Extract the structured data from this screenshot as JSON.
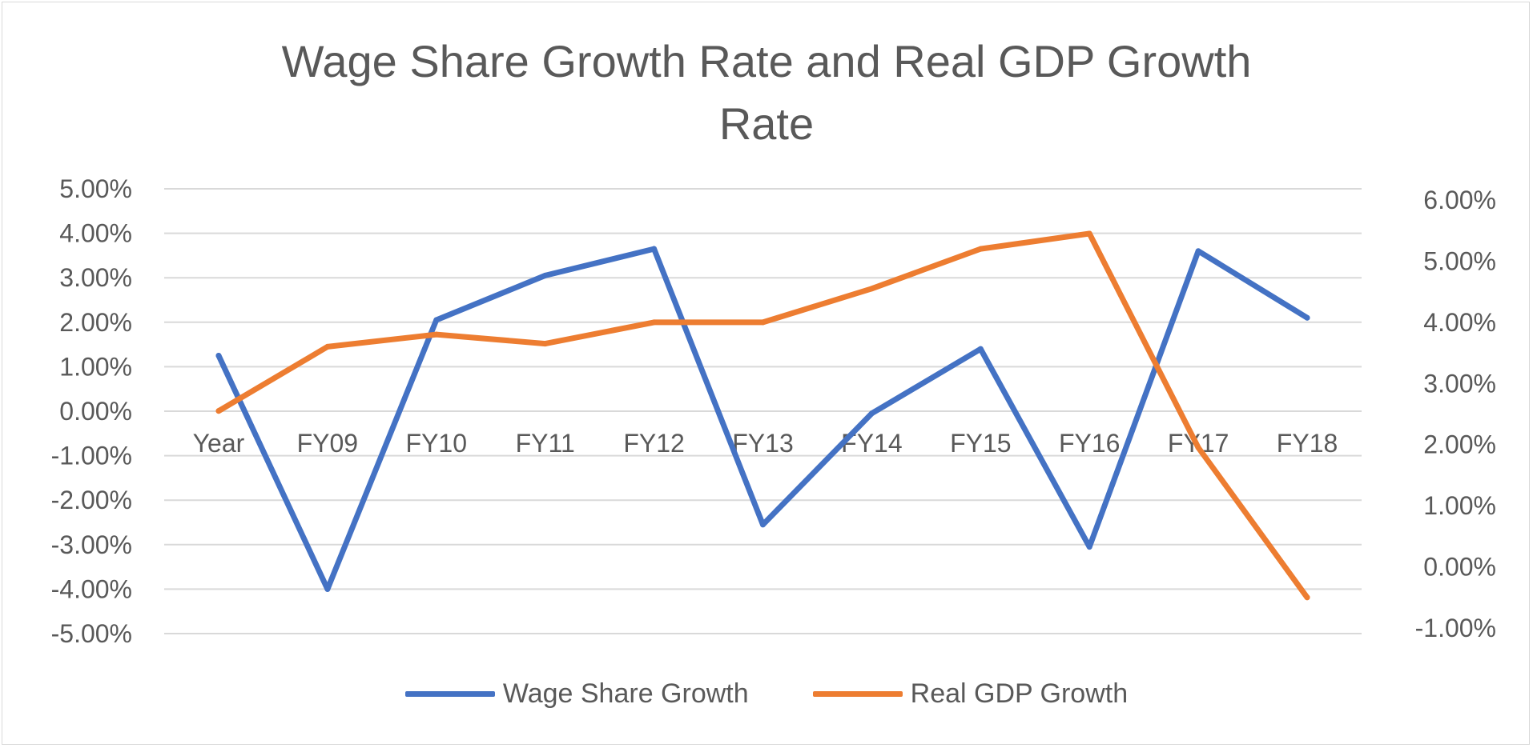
{
  "chart_data": {
    "type": "line",
    "title": "Wage Share Growth Rate and Real GDP Growth Rate",
    "title_lines": [
      "Wage Share Growth Rate and Real GDP Growth",
      "Rate"
    ],
    "categories": [
      "Year",
      "FY09",
      "FY10",
      "FY11",
      "FY12",
      "FY13",
      "FY14",
      "FY15",
      "FY16",
      "FY17",
      "FY18"
    ],
    "series": [
      {
        "name": "Wage Share Growth",
        "axis": "left",
        "color": "#4472C4",
        "values": [
          1.25,
          -4.0,
          2.05,
          3.05,
          3.65,
          -2.55,
          -0.05,
          1.4,
          -3.05,
          3.6,
          2.1
        ]
      },
      {
        "name": "Real GDP Growth",
        "axis": "right",
        "color": "#ED7D31",
        "values": [
          2.55,
          3.6,
          3.8,
          3.65,
          4.0,
          4.0,
          4.55,
          5.2,
          5.45,
          1.95,
          -0.5
        ]
      }
    ],
    "y_left": {
      "ylim": [
        -5,
        5
      ],
      "ticks": [
        5,
        4,
        3,
        2,
        1,
        0,
        -1,
        -2,
        -3,
        -4,
        -5
      ],
      "tick_labels": [
        "5.00%",
        "4.00%",
        "3.00%",
        "2.00%",
        "1.00%",
        "0.00%",
        "-1.00%",
        "-2.00%",
        "-3.00%",
        "-4.00%",
        "-5.00%"
      ]
    },
    "y_right": {
      "ylim": [
        -1,
        6
      ],
      "ticks": [
        6,
        5,
        4,
        3,
        2,
        1,
        0,
        -1
      ],
      "tick_labels": [
        "6.00%",
        "5.00%",
        "4.00%",
        "3.00%",
        "2.00%",
        "1.00%",
        "0.00%",
        "-1.00%"
      ]
    },
    "grid": true,
    "legend_position": "bottom"
  }
}
